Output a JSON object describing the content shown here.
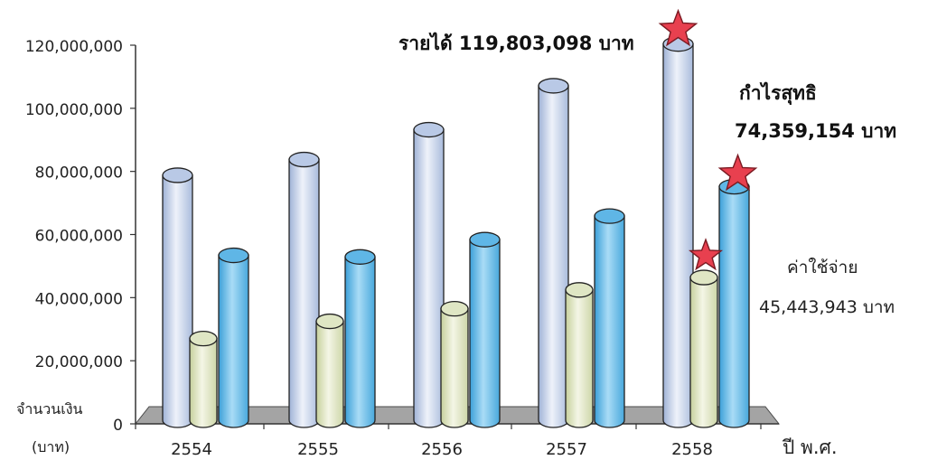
{
  "chart_data": {
    "type": "bar",
    "style": "3d-cylinder",
    "categories": [
      "2554",
      "2555",
      "2556",
      "2557",
      "2558"
    ],
    "series": [
      {
        "key": "revenue",
        "values": [
          78000000,
          83000000,
          92500000,
          106500000,
          119803098
        ],
        "color": "#b9c9e6"
      },
      {
        "key": "expense",
        "values": [
          26000000,
          31500000,
          35500000,
          41500000,
          45443943
        ],
        "color": "#dfe6c4"
      },
      {
        "key": "profit",
        "values": [
          52500000,
          52000000,
          57500000,
          65000000,
          74359154
        ],
        "color": "#5fb6e6"
      }
    ],
    "ylim": [
      0,
      120000000
    ],
    "yticks": [
      "0",
      "20,000,000",
      "40,000,000",
      "60,000,000",
      "80,000,000",
      "100,000,000",
      "120,000,000"
    ],
    "ylabel_line1": "จำนวนเงิน",
    "ylabel_line2": "(บาท)",
    "xlabel": "ปี พ.ศ.",
    "grid": false,
    "annotations": {
      "revenue": "รายได้ 119,803,098 บาท",
      "profit_title": "กำไรสุทธิ",
      "profit_value": "74,359,154 บาท",
      "expense_title": "ค่าใช้จ่าย",
      "expense_value": "45,443,943 บาท"
    },
    "highlight_stars": [
      "revenue:2558",
      "expense:2558",
      "profit:2558"
    ]
  },
  "colors": {
    "star": "#e8404f",
    "axis": "#333333",
    "floor": "#9e9e9e"
  }
}
